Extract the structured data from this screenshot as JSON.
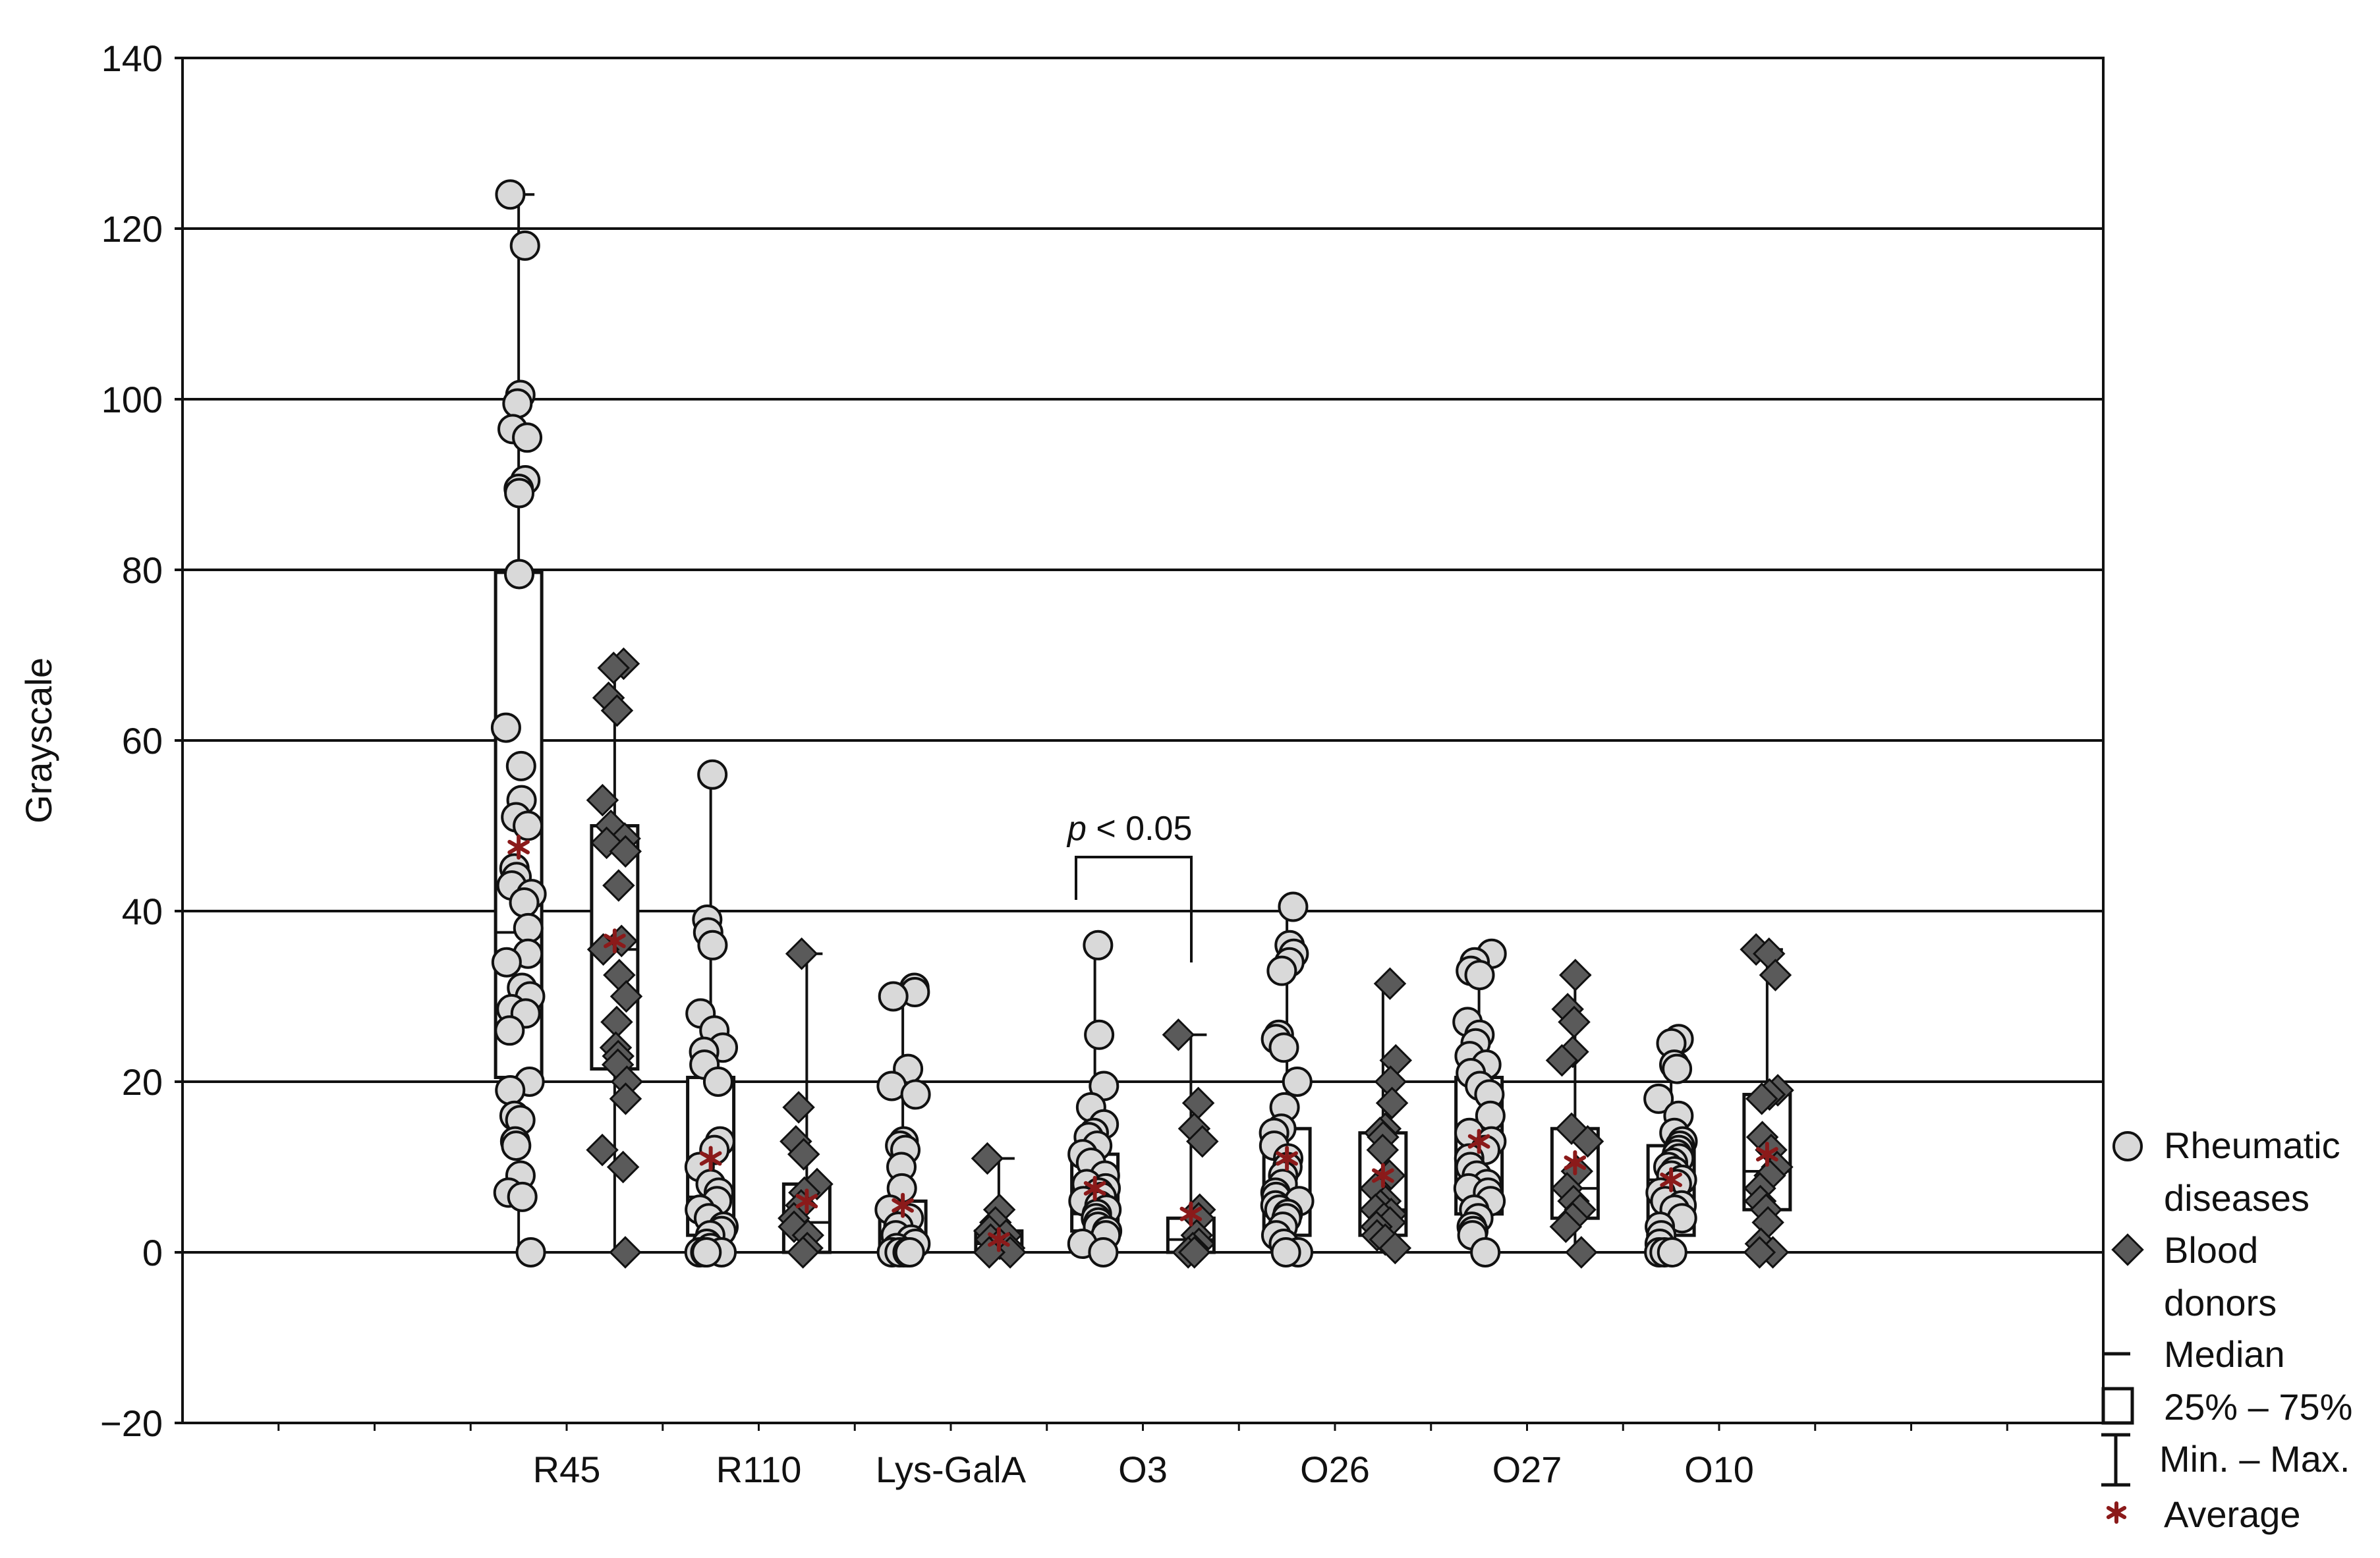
{
  "chart_data": {
    "type": "box",
    "title": "",
    "xlabel": "",
    "ylabel": "Grayscale",
    "ylim": [
      -20,
      140
    ],
    "yticks": [
      -20,
      0,
      20,
      40,
      60,
      80,
      100,
      120,
      140
    ],
    "grid": "horizontal",
    "categories": [
      "R45",
      "R110",
      "Lys-GalA",
      "O3",
      "O26",
      "O27",
      "O10"
    ],
    "series": [
      {
        "name": "Rheumatic diseases",
        "marker": "circle",
        "color": "#d9d9d9",
        "groups": [
          {
            "min": 0,
            "q1": 20.5,
            "median": 37.5,
            "q3": 79.7,
            "max": 124,
            "mean": 47.5,
            "points": [
              124,
              118,
              100.5,
              99.5,
              96.5,
              95.5,
              90.5,
              89.5,
              89,
              79.5,
              61.5,
              57,
              53,
              51,
              50,
              45,
              44,
              43,
              42,
              41,
              38,
              35,
              34,
              31,
              30,
              28.5,
              28,
              26,
              20,
              19,
              16,
              15.5,
              13,
              12.5,
              9,
              7,
              6.5,
              0
            ]
          },
          {
            "min": 0,
            "q1": 2,
            "median": 6.5,
            "q3": 20.5,
            "max": 56,
            "mean": 11,
            "points": [
              56,
              39,
              37.5,
              36,
              28,
              26,
              24,
              23.5,
              22,
              20,
              13,
              12,
              10,
              8,
              7,
              6,
              5,
              4,
              3,
              2.5,
              2,
              1,
              0.5,
              0,
              0,
              0,
              0
            ]
          },
          {
            "min": 0,
            "q1": 0,
            "median": 2,
            "q3": 6,
            "max": 31,
            "mean": 5.5,
            "points": [
              31,
              30.5,
              30,
              21.5,
              19.5,
              18.5,
              13,
              12.5,
              12,
              10,
              7.5,
              5,
              4,
              3,
              2,
              1.5,
              1,
              0.5,
              0,
              0,
              0,
              0,
              0
            ]
          },
          {
            "min": 0,
            "q1": 2.5,
            "median": 4.5,
            "q3": 11.5,
            "max": 36,
            "mean": 7.5,
            "points": [
              36,
              25.5,
              19.5,
              17,
              15,
              14,
              13.5,
              12.5,
              11.5,
              10.5,
              9,
              8,
              7.5,
              7,
              6.5,
              6,
              5.5,
              5,
              4.5,
              4,
              3.5,
              3,
              2.5,
              2,
              1,
              0
            ]
          },
          {
            "min": 0,
            "q1": 2,
            "median": 6,
            "q3": 14.5,
            "max": 40.5,
            "mean": 11,
            "points": [
              40.5,
              36,
              35,
              34,
              33,
              25.5,
              25,
              24,
              20,
              17,
              14.5,
              14,
              12.5,
              11,
              10,
              9,
              8,
              7,
              6.5,
              6,
              5.5,
              5,
              4.5,
              4,
              3,
              2,
              1,
              0,
              0
            ]
          },
          {
            "min": 0,
            "q1": 4.5,
            "median": 7.5,
            "q3": 20.5,
            "max": 35,
            "mean": 13,
            "points": [
              35,
              34,
              33,
              32.5,
              27,
              25.5,
              24.5,
              23,
              22,
              21,
              19.5,
              18.5,
              16,
              14,
              13,
              12,
              11,
              10,
              9,
              8,
              7.5,
              7,
              6,
              5,
              4,
              3,
              2.5,
              2,
              0
            ]
          },
          {
            "min": 0,
            "q1": 2,
            "median": 8.5,
            "q3": 12.5,
            "max": 25,
            "mean": 8.5,
            "points": [
              25,
              24.5,
              22,
              21.5,
              18,
              16,
              14,
              13,
              12.5,
              12,
              11.5,
              11,
              10.5,
              10,
              9.5,
              9,
              8.5,
              8,
              7,
              6,
              5.5,
              5,
              4,
              3,
              2,
              1,
              0,
              0,
              0
            ]
          }
        ]
      },
      {
        "name": "Blood donors",
        "marker": "diamond",
        "color": "#5a5a5a",
        "groups": [
          {
            "min": 0,
            "q1": 21.5,
            "median": 35.5,
            "q3": 50,
            "max": 69,
            "mean": 36.5,
            "points": [
              69,
              68.5,
              65,
              63.5,
              53,
              50,
              48.5,
              48,
              47,
              43,
              36.5,
              35.5,
              32.5,
              30,
              27,
              24,
              23,
              22,
              20,
              18,
              12,
              10,
              0
            ]
          },
          {
            "min": 0,
            "q1": 0,
            "median": 3.5,
            "q3": 8,
            "max": 35,
            "mean": 6,
            "points": [
              35,
              17,
              13,
              11.5,
              8,
              7,
              5.5,
              4,
              3,
              2,
              0.5,
              0
            ]
          },
          {
            "min": 0,
            "q1": 0,
            "median": 1,
            "q3": 2.5,
            "max": 11,
            "mean": 1.5,
            "points": [
              11,
              5,
              3.5,
              2.5,
              2,
              1.5,
              1,
              0.5,
              0,
              0
            ]
          },
          {
            "min": 0,
            "q1": 0,
            "median": 1.5,
            "q3": 4,
            "max": 25.5,
            "mean": 4.5,
            "points": [
              25.5,
              17.5,
              14.5,
              13,
              5,
              4,
              2,
              1,
              0.5,
              0,
              0
            ]
          },
          {
            "min": 0,
            "q1": 2,
            "median": 5,
            "q3": 14,
            "max": 31.5,
            "mean": 9,
            "points": [
              31.5,
              22.5,
              20,
              17.5,
              14.5,
              14,
              13.5,
              12,
              9,
              7.5,
              6,
              5.5,
              5,
              4.5,
              4,
              3.5,
              3,
              2,
              1.5,
              0.5
            ]
          },
          {
            "min": 0,
            "q1": 4,
            "median": 7.5,
            "q3": 14.5,
            "max": 32.5,
            "mean": 10.5,
            "points": [
              32.5,
              28.5,
              27,
              23.5,
              22.5,
              14.5,
              13,
              9.5,
              7.5,
              6,
              5,
              4,
              3,
              0
            ]
          },
          {
            "min": 0,
            "q1": 5,
            "median": 9.5,
            "q3": 18.5,
            "max": 35.5,
            "mean": 11.5,
            "points": [
              35.5,
              35,
              32.5,
              19,
              18.5,
              18,
              13.5,
              12,
              10,
              9,
              7.5,
              6,
              5,
              3.5,
              1,
              0,
              0
            ]
          }
        ]
      }
    ],
    "annotations": [
      {
        "text_italic": "p",
        "text": " < 0.05",
        "between": [
          "Rheumatic diseases O3",
          "Blood donors O3"
        ]
      }
    ],
    "legend": {
      "placement": "right-bottom, outside plot",
      "entries": [
        {
          "symbol": "circle",
          "label_line1": "Rheumatic",
          "label_line2": "diseases"
        },
        {
          "symbol": "diamond",
          "label_line1": "Blood",
          "label_line2": "donors"
        },
        {
          "symbol": "median-line",
          "label_line1": "Median"
        },
        {
          "symbol": "box",
          "label_line1": "25% – 75%"
        },
        {
          "symbol": "whisker",
          "label_line1": "Min. – Max."
        },
        {
          "symbol": "asterisk",
          "label_line1": "Average"
        }
      ]
    },
    "average_marker_color": "#8b1a1a"
  }
}
